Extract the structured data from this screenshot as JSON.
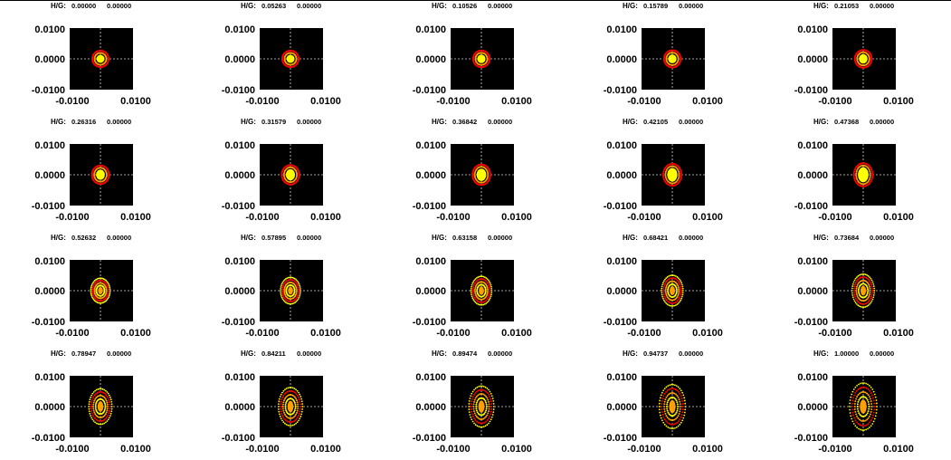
{
  "axis": {
    "x_ticks": [
      "-0.0100",
      "0.0100"
    ],
    "y_ticks": [
      "0.0100",
      "0.0000",
      "-0.0100"
    ],
    "xlim": [
      -0.01,
      0.01
    ],
    "ylim": [
      -0.01,
      0.01
    ]
  },
  "colors": {
    "plot_bg": "#000000",
    "crosshair": "#d8d8d8",
    "outer_ring": "#ff0000",
    "mid_ring": "#ffa000",
    "inner_core": "#ffff00"
  },
  "chart_data": {
    "type": "scatter",
    "label_prefix": "H/G:",
    "panels": [
      {
        "hg": "0.00000",
        "second": "0.00000"
      },
      {
        "hg": "0.05263",
        "second": "0.00000"
      },
      {
        "hg": "0.10526",
        "second": "0.00000"
      },
      {
        "hg": "0.15789",
        "second": "0.00000"
      },
      {
        "hg": "0.21053",
        "second": "0.00000"
      },
      {
        "hg": "0.26316",
        "second": "0.00000"
      },
      {
        "hg": "0.31579",
        "second": "0.00000"
      },
      {
        "hg": "0.36842",
        "second": "0.00000"
      },
      {
        "hg": "0.42105",
        "second": "0.00000"
      },
      {
        "hg": "0.47368",
        "second": "0.00000"
      },
      {
        "hg": "0.52632",
        "second": "0.00000"
      },
      {
        "hg": "0.57895",
        "second": "0.00000"
      },
      {
        "hg": "0.63158",
        "second": "0.00000"
      },
      {
        "hg": "0.68421",
        "second": "0.00000"
      },
      {
        "hg": "0.73684",
        "second": "0.00000"
      },
      {
        "hg": "0.78947",
        "second": "0.00000"
      },
      {
        "hg": "0.84211",
        "second": "0.00000"
      },
      {
        "hg": "0.89474",
        "second": "0.00000"
      },
      {
        "hg": "0.94737",
        "second": "0.00000"
      },
      {
        "hg": "1.00000",
        "second": "0.00000"
      }
    ]
  }
}
